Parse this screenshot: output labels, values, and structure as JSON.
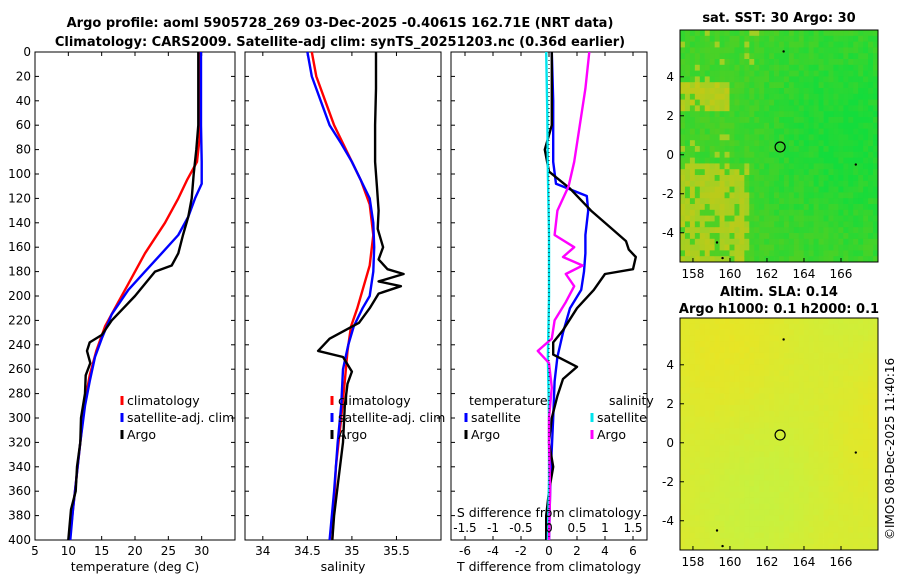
{
  "figure": {
    "title_line1": "Argo profile: aoml 5905728_269 03-Dec-2025 -0.4061S 162.71E (NRT data)",
    "title_line2": "Climatology: CARS2009. Satellite-adj clim: synTS_20251203.nc (0.36d earlier)",
    "credit": "©IMOS 08-Dec-2025 11:40:16"
  },
  "colors": {
    "climatology": "#ff0000",
    "satellite": "#0000ff",
    "argo": "#000000",
    "sal_satellite": "#00e5ee",
    "sal_argo": "#ff00ff"
  },
  "chart_data": [
    {
      "id": "temperature",
      "type": "line",
      "xlabel": "temperature (deg C)",
      "xlim": [
        5,
        35
      ],
      "xticks": [
        5,
        10,
        15,
        20,
        25,
        30
      ],
      "ylim": [
        0,
        400
      ],
      "yticks": [
        0,
        20,
        40,
        60,
        80,
        100,
        120,
        140,
        160,
        180,
        200,
        220,
        240,
        260,
        280,
        300,
        320,
        340,
        360,
        380,
        400
      ],
      "legend": [
        "climatology",
        "satellite-adj. clim",
        "Argo"
      ],
      "legend_position": "center-right",
      "series": [
        {
          "name": "climatology",
          "color": "#ff0000",
          "points": [
            [
              29.8,
              0
            ],
            [
              29.8,
              40
            ],
            [
              29.7,
              70
            ],
            [
              29.3,
              90
            ],
            [
              27.8,
              105
            ],
            [
              26.5,
              120
            ],
            [
              24.5,
              140
            ],
            [
              21.5,
              165
            ],
            [
              19.5,
              185
            ],
            [
              17.5,
              205
            ],
            [
              15.5,
              225
            ],
            [
              14.2,
              245
            ],
            [
              13.2,
              265
            ],
            [
              12.4,
              290
            ],
            [
              11.8,
              320
            ],
            [
              11.2,
              350
            ],
            [
              10.6,
              380
            ],
            [
              10.2,
              400
            ]
          ]
        },
        {
          "name": "satellite-adj. clim",
          "color": "#0000ff",
          "points": [
            [
              29.9,
              0
            ],
            [
              29.9,
              60
            ],
            [
              30.0,
              90
            ],
            [
              30.0,
              108
            ],
            [
              29.0,
              120
            ],
            [
              28.0,
              135
            ],
            [
              26.5,
              150
            ],
            [
              24.0,
              165
            ],
            [
              21.5,
              180
            ],
            [
              19.0,
              195
            ],
            [
              16.5,
              215
            ],
            [
              15.0,
              235
            ],
            [
              14.0,
              250
            ],
            [
              13.2,
              270
            ],
            [
              12.5,
              290
            ],
            [
              11.8,
              320
            ],
            [
              11.2,
              350
            ],
            [
              10.7,
              375
            ],
            [
              10.3,
              400
            ]
          ]
        },
        {
          "name": "Argo",
          "color": "#000000",
          "points": [
            [
              29.5,
              0
            ],
            [
              29.5,
              60
            ],
            [
              29.2,
              80
            ],
            [
              28.8,
              100
            ],
            [
              28.5,
              120
            ],
            [
              28.0,
              135
            ],
            [
              27.2,
              150
            ],
            [
              26.5,
              165
            ],
            [
              25.5,
              175
            ],
            [
              23.0,
              180
            ],
            [
              20.0,
              200
            ],
            [
              16.5,
              220
            ],
            [
              15.0,
              232
            ],
            [
              13.2,
              238
            ],
            [
              12.8,
              245
            ],
            [
              13.3,
              255
            ],
            [
              12.6,
              265
            ],
            [
              12.5,
              280
            ],
            [
              11.9,
              300
            ],
            [
              11.8,
              320
            ],
            [
              11.3,
              340
            ],
            [
              11.1,
              360
            ],
            [
              10.4,
              375
            ],
            [
              10.0,
              400
            ]
          ]
        }
      ]
    },
    {
      "id": "salinity",
      "type": "line",
      "xlabel": "salinity",
      "xlim": [
        33.8,
        36.0
      ],
      "xticks": [
        34,
        34.5,
        35,
        35.5
      ],
      "ylim": [
        0,
        400
      ],
      "legend": [
        "climatology",
        "satellite-adj. clim",
        "Argo"
      ],
      "legend_position": "center-right",
      "series": [
        {
          "name": "climatology",
          "color": "#ff0000",
          "points": [
            [
              34.55,
              0
            ],
            [
              34.6,
              20
            ],
            [
              34.7,
              40
            ],
            [
              34.8,
              60
            ],
            [
              34.9,
              75
            ],
            [
              35.0,
              90
            ],
            [
              35.1,
              105
            ],
            [
              35.2,
              125
            ],
            [
              35.24,
              150
            ],
            [
              35.2,
              175
            ],
            [
              35.12,
              195
            ],
            [
              35.06,
              210
            ],
            [
              34.99,
              225
            ],
            [
              34.95,
              245
            ],
            [
              34.92,
              270
            ],
            [
              34.88,
              300
            ],
            [
              34.82,
              340
            ],
            [
              34.78,
              400
            ]
          ]
        },
        {
          "name": "satellite-adj. clim",
          "color": "#0000ff",
          "points": [
            [
              34.5,
              0
            ],
            [
              34.55,
              20
            ],
            [
              34.65,
              40
            ],
            [
              34.75,
              60
            ],
            [
              34.88,
              75
            ],
            [
              35.0,
              90
            ],
            [
              35.1,
              105
            ],
            [
              35.2,
              120
            ],
            [
              35.24,
              140
            ],
            [
              35.25,
              160
            ],
            [
              35.24,
              180
            ],
            [
              35.2,
              200
            ],
            [
              35.12,
              210
            ],
            [
              35.02,
              225
            ],
            [
              34.96,
              240
            ],
            [
              34.9,
              260
            ],
            [
              34.88,
              290
            ],
            [
              34.84,
              320
            ],
            [
              34.8,
              360
            ],
            [
              34.75,
              400
            ]
          ]
        },
        {
          "name": "Argo",
          "color": "#000000",
          "points": [
            [
              35.27,
              0
            ],
            [
              35.27,
              30
            ],
            [
              35.26,
              60
            ],
            [
              35.26,
              90
            ],
            [
              35.28,
              110
            ],
            [
              35.3,
              130
            ],
            [
              35.29,
              145
            ],
            [
              35.35,
              160
            ],
            [
              35.3,
              170
            ],
            [
              35.4,
              178
            ],
            [
              35.58,
              182
            ],
            [
              35.3,
              188
            ],
            [
              35.55,
              192
            ],
            [
              35.3,
              198
            ],
            [
              35.2,
              210
            ],
            [
              35.08,
              222
            ],
            [
              34.75,
              235
            ],
            [
              34.62,
              245
            ],
            [
              34.9,
              250
            ],
            [
              35.0,
              262
            ],
            [
              34.95,
              272
            ],
            [
              34.92,
              290
            ],
            [
              34.9,
              320
            ],
            [
              34.85,
              350
            ],
            [
              34.8,
              380
            ],
            [
              34.78,
              400
            ]
          ]
        }
      ]
    },
    {
      "id": "differences",
      "type": "line",
      "xlabel": "T difference from climatology",
      "xlim": [
        -7,
        7
      ],
      "xticks": [
        -6,
        -4,
        -2,
        0,
        2,
        4,
        6
      ],
      "top_label": "S difference from climatology",
      "top_ticks": [
        "-1.5",
        "-1",
        "-0.5",
        "0",
        "0.5",
        "1",
        "1.5"
      ],
      "s_scale": 4,
      "ylim": [
        0,
        400
      ],
      "legend_temperature_title": "temperature",
      "legend_salinity_title": "salinity",
      "legend_temperature": [
        "satellite",
        "Argo"
      ],
      "legend_salinity": [
        "satellite",
        "Argo"
      ],
      "series": [
        {
          "name": "T satellite",
          "color": "#0000ff",
          "kind": "T",
          "points": [
            [
              0.2,
              0
            ],
            [
              0.3,
              40
            ],
            [
              0.3,
              90
            ],
            [
              0.5,
              108
            ],
            [
              2.7,
              118
            ],
            [
              2.8,
              130
            ],
            [
              2.6,
              150
            ],
            [
              2.6,
              165
            ],
            [
              2.5,
              180
            ],
            [
              2.3,
              195
            ],
            [
              1.5,
              210
            ],
            [
              1.0,
              230
            ],
            [
              0.6,
              250
            ],
            [
              0.4,
              270
            ],
            [
              0.3,
              300
            ],
            [
              0.1,
              350
            ],
            [
              0.0,
              400
            ]
          ]
        },
        {
          "name": "T Argo",
          "color": "#000000",
          "kind": "T",
          "points": [
            [
              0.2,
              0
            ],
            [
              0.2,
              60
            ],
            [
              -0.3,
              80
            ],
            [
              0.0,
              98
            ],
            [
              1.5,
              112
            ],
            [
              3.0,
              130
            ],
            [
              4.5,
              145
            ],
            [
              5.5,
              155
            ],
            [
              5.7,
              162
            ],
            [
              6.2,
              168
            ],
            [
              6.0,
              178
            ],
            [
              4.0,
              182
            ],
            [
              3.2,
              195
            ],
            [
              2.0,
              210
            ],
            [
              1.0,
              228
            ],
            [
              0.3,
              238
            ],
            [
              0.3,
              248
            ],
            [
              2.0,
              258
            ],
            [
              1.0,
              268
            ],
            [
              0.6,
              282
            ],
            [
              0.2,
              300
            ],
            [
              0.0,
              320
            ],
            [
              0.3,
              340
            ],
            [
              0.0,
              360
            ],
            [
              -0.2,
              380
            ],
            [
              -0.2,
              400
            ]
          ]
        },
        {
          "name": "S satellite",
          "color": "#00e5ee",
          "kind": "S",
          "points": [
            [
              -0.05,
              0
            ],
            [
              -0.03,
              50
            ],
            [
              -0.02,
              100
            ],
            [
              0.0,
              150
            ],
            [
              0.0,
              200
            ],
            [
              -0.02,
              250
            ],
            [
              0.0,
              300
            ],
            [
              0.0,
              350
            ],
            [
              -0.02,
              400
            ]
          ]
        },
        {
          "name": "S Argo",
          "color": "#ff00ff",
          "kind": "S",
          "points": [
            [
              0.72,
              0
            ],
            [
              0.65,
              30
            ],
            [
              0.55,
              60
            ],
            [
              0.45,
              90
            ],
            [
              0.35,
              110
            ],
            [
              0.15,
              130
            ],
            [
              0.1,
              150
            ],
            [
              0.45,
              160
            ],
            [
              0.25,
              168
            ],
            [
              0.6,
              175
            ],
            [
              0.3,
              182
            ],
            [
              0.45,
              192
            ],
            [
              0.3,
              205
            ],
            [
              0.1,
              220
            ],
            [
              0.05,
              235
            ],
            [
              -0.2,
              245
            ],
            [
              0.0,
              255
            ],
            [
              0.05,
              275
            ],
            [
              0.0,
              300
            ],
            [
              0.0,
              320
            ],
            [
              0.02,
              360
            ],
            [
              0.0,
              400
            ]
          ]
        }
      ]
    },
    {
      "id": "sst_map",
      "type": "heatmap",
      "title": "sat. SST: 30 Argo: 30",
      "xlim": [
        157.3,
        168.0
      ],
      "ylim": [
        -5.5,
        6.4
      ],
      "xticks": [
        158,
        160,
        162,
        164,
        166
      ],
      "yticks": [
        -4,
        -2,
        0,
        2,
        4
      ],
      "profile_location": [
        162.71,
        0.4
      ],
      "colormap": "green",
      "missing_points": [
        [
          162.9,
          5.3
        ],
        [
          166.8,
          -0.5
        ],
        [
          159.3,
          -4.5
        ],
        [
          159.6,
          -5.3
        ]
      ]
    },
    {
      "id": "sla_map",
      "type": "heatmap",
      "title_line1": "Altim. SLA: 0.14",
      "title_line2": "Argo h1000: 0.1 h2000: 0.1",
      "xlim": [
        157.3,
        168.0
      ],
      "ylim": [
        -5.5,
        6.4
      ],
      "xticks": [
        158,
        160,
        162,
        164,
        166
      ],
      "yticks": [
        -4,
        -2,
        0,
        2,
        4
      ],
      "profile_location": [
        162.71,
        0.4
      ],
      "colormap": "yellow",
      "missing_points": [
        [
          162.9,
          5.3
        ],
        [
          166.8,
          -0.5
        ],
        [
          159.3,
          -4.5
        ],
        [
          159.6,
          -5.3
        ]
      ]
    }
  ]
}
